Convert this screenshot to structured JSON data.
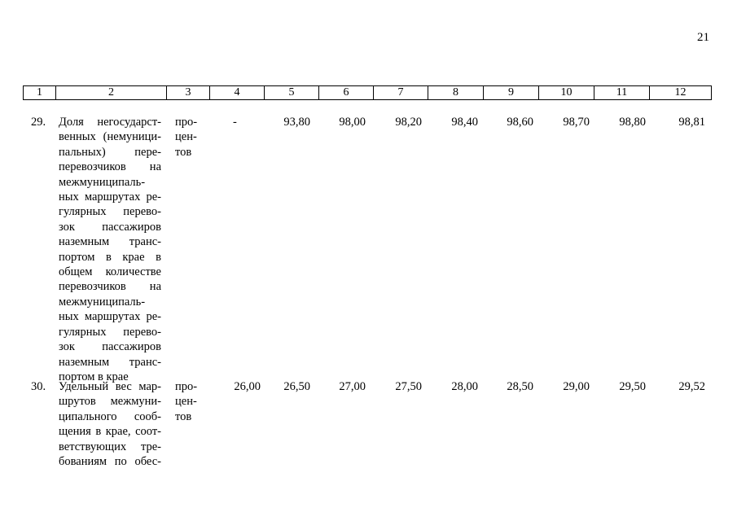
{
  "page_number": "21",
  "header_columns": [
    "1",
    "2",
    "3",
    "4",
    "5",
    "6",
    "7",
    "8",
    "9",
    "10",
    "11",
    "12"
  ],
  "rows": [
    {
      "num": "29.",
      "name_lines": [
        "Доля негосударст-",
        "венных (немуници-",
        "пальных) пере-",
        "перевозчиков на",
        "межмуниципаль-",
        "ных маршрутах ре-",
        "гулярных перево-",
        "зок пассажиров",
        "наземным транс-",
        "портом в крае в",
        "общем количестве",
        "перевозчиков на",
        "межмуниципаль-",
        "ных маршрутах ре-",
        "гулярных перево-",
        "зок пассажиров",
        "наземным транс-",
        "портом в крае"
      ],
      "unit_lines": [
        "про-",
        "цен-",
        "тов"
      ],
      "values": [
        "-",
        "93,80",
        "98,00",
        "98,20",
        "98,40",
        "98,60",
        "98,70",
        "98,80",
        "98,81"
      ]
    },
    {
      "num": "30.",
      "name_lines": [
        "Удельный вес мар-",
        "шрутов межмуни-",
        "ципального сооб-",
        "щения в крае, соот-",
        "ветствующих тре-",
        "бованиям по обес-"
      ],
      "unit_lines": [
        "про-",
        "цен-",
        "тов"
      ],
      "values": [
        "26,00",
        "26,50",
        "27,00",
        "27,50",
        "28,00",
        "28,50",
        "29,00",
        "29,50",
        "29,52"
      ]
    }
  ]
}
